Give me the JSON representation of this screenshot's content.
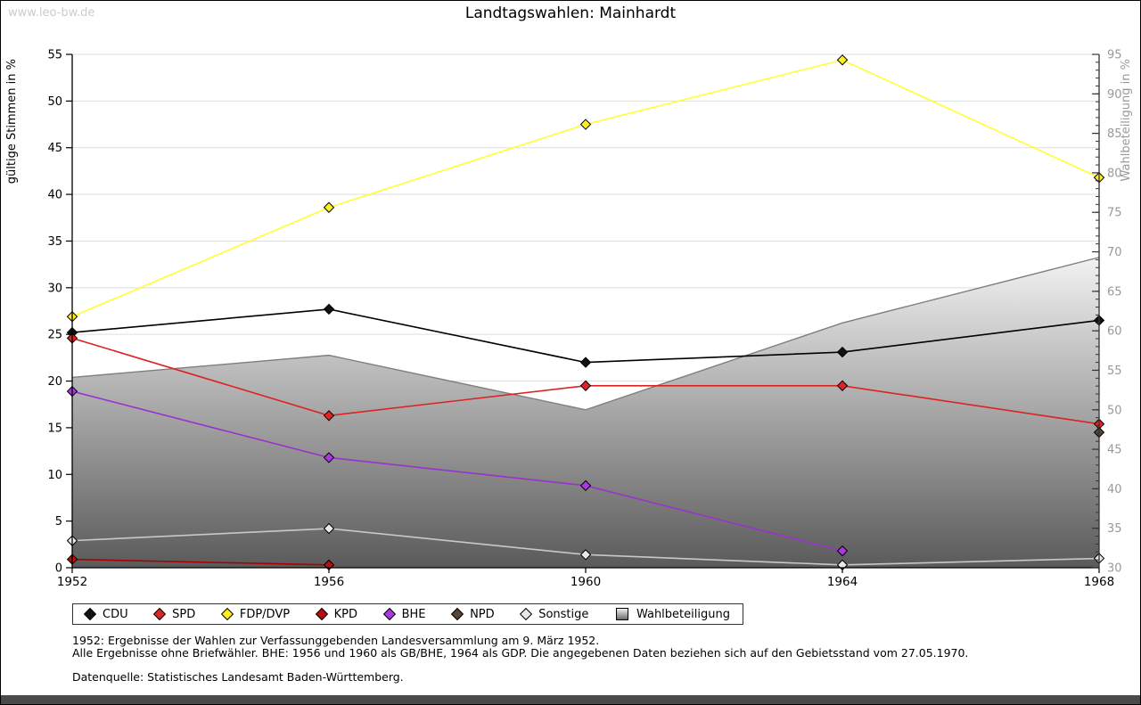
{
  "watermark": "www.leo-bw.de",
  "title": "Landtagswahlen: Mainhardt",
  "footer": {
    "line1": "1952: Ergebnisse der Wahlen zur Verfassunggebenden Landesversammlung am 9. März 1952.",
    "line2": "Alle Ergebnisse ohne Briefwähler. BHE: 1956 und 1960 als GB/BHE, 1964 als GDP. Die angegebenen Daten beziehen sich auf den Gebietsstand vom 27.05.1970.",
    "line3": "Datenquelle: Statistisches Landesamt Baden-Württemberg."
  },
  "chart_data": {
    "type": "line",
    "title": "Landtagswahlen: Mainhardt",
    "x": [
      "1952",
      "1956",
      "1960",
      "1964",
      "1968"
    ],
    "left_axis": {
      "label": "gültige Stimmen in %",
      "min": 0,
      "max": 55,
      "tick_step": 5
    },
    "right_axis": {
      "label": "Wahlbeteiligung in %",
      "min": 30,
      "max": 95,
      "tick_step": 5,
      "minor_step": 1
    },
    "grid": true,
    "legend_position": "bottom",
    "marker_shape": "diamond",
    "series": [
      {
        "name": "CDU",
        "axis": "left",
        "color": "#000000",
        "marker": "#111111",
        "values": [
          25.2,
          27.7,
          22.0,
          23.1,
          26.5
        ]
      },
      {
        "name": "SPD",
        "axis": "left",
        "color": "#dd2222",
        "marker": "#e02424",
        "values": [
          24.6,
          16.3,
          19.5,
          19.5,
          15.4
        ]
      },
      {
        "name": "FDP/DVP",
        "axis": "left",
        "color": "#ffff33",
        "marker": "#ffee22",
        "values": [
          26.9,
          38.6,
          47.5,
          54.4,
          41.8
        ]
      },
      {
        "name": "KPD",
        "axis": "left",
        "color": "#aa0000",
        "marker": "#bb0e0e",
        "values": [
          0.9,
          0.3,
          null,
          null,
          null
        ]
      },
      {
        "name": "BHE",
        "axis": "left",
        "color": "#9933cc",
        "marker": "#a839e0",
        "values": [
          18.9,
          11.8,
          8.8,
          1.8,
          null
        ]
      },
      {
        "name": "NPD",
        "axis": "left",
        "color": "#5a4632",
        "marker": "#5a4632",
        "values": [
          null,
          null,
          null,
          null,
          14.5
        ]
      },
      {
        "name": "Sonstige",
        "axis": "left",
        "color": "#c8c8c8",
        "marker": "#e8e8e8",
        "values": [
          2.9,
          4.2,
          1.4,
          0.3,
          1.0
        ]
      },
      {
        "name": "Wahlbeteiligung",
        "axis": "right",
        "type": "area",
        "color": "#7f7f7f",
        "values": [
          54.1,
          56.9,
          50.0,
          61.0,
          69.3
        ]
      }
    ]
  }
}
